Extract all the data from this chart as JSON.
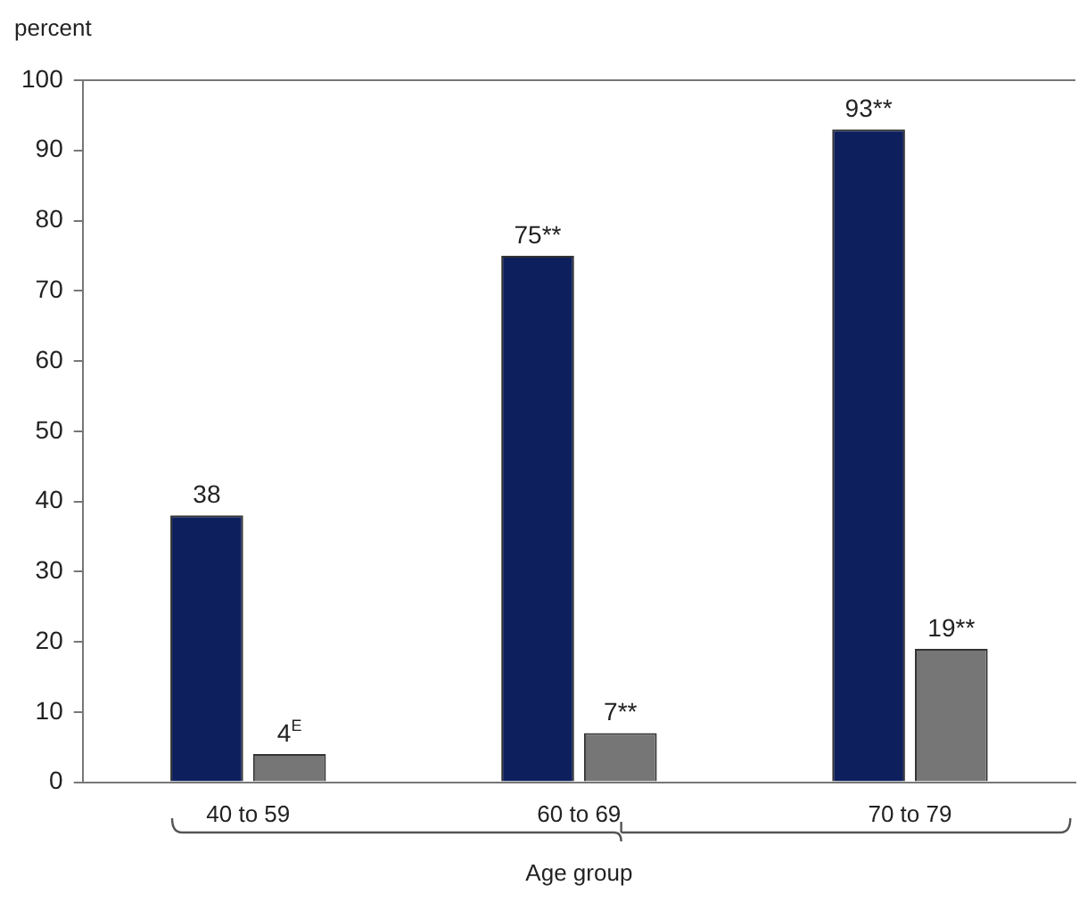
{
  "chart_data": {
    "type": "bar",
    "ylabel": "percent",
    "xlabel": "Age group",
    "categories": [
      "40 to 59",
      "60 to 69",
      "70 to 79"
    ],
    "ylim": [
      0,
      100
    ],
    "yticks": [
      0,
      10,
      20,
      30,
      40,
      50,
      60,
      70,
      80,
      90,
      100
    ],
    "series": [
      {
        "color": "#0d1f5c",
        "values": [
          38,
          75,
          93
        ],
        "value_labels": [
          "38",
          "75**",
          "93**"
        ]
      },
      {
        "color": "#767676",
        "values": [
          4,
          7,
          19
        ],
        "value_labels": [
          "4$^{E}$",
          "7**",
          "19**"
        ]
      }
    ]
  }
}
